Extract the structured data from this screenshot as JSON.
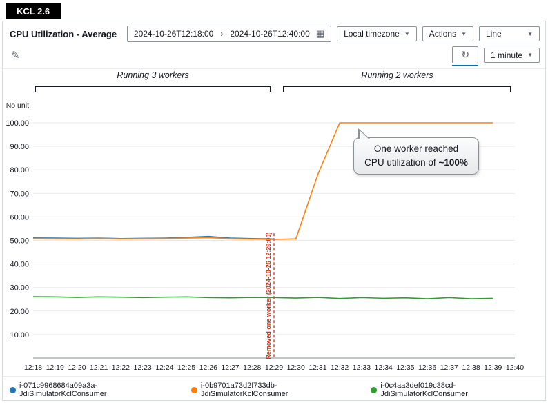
{
  "badge": {
    "label": "KCL 2.6"
  },
  "header": {
    "title": "CPU Utilization - Average",
    "date_start": "2024-10-26T12:18:00",
    "date_end": "2024-10-26T12:40:00",
    "timezone_label": "Local timezone",
    "actions_label": "Actions",
    "chart_type_label": "Line"
  },
  "toolbar": {
    "interval_label": "1 minute"
  },
  "icons": {
    "chevron_right": "›",
    "calendar": "▦",
    "dropdown": "▼",
    "edit": "✎",
    "refresh": "↻"
  },
  "annotations": {
    "left_bracket": "Running 3 workers",
    "right_bracket": "Running 2 workers",
    "callout_line1": "One worker reached",
    "callout_line2": "CPU utilization of ",
    "callout_bold": "~100%"
  },
  "chart_data": {
    "type": "line",
    "title": "CPU Utilization - Average",
    "ylabel": "No unit",
    "xlabel": "",
    "ylim": [
      0,
      103
    ],
    "grid": "horizontal",
    "legend_position": "bottom",
    "yticks": [
      10,
      20,
      30,
      40,
      50,
      60,
      70,
      80,
      90,
      100
    ],
    "x": [
      "12:18",
      "12:19",
      "12:20",
      "12:21",
      "12:22",
      "12:23",
      "12:24",
      "12:25",
      "12:26",
      "12:27",
      "12:28",
      "12:29",
      "12:30",
      "12:31",
      "12:32",
      "12:33",
      "12:34",
      "12:35",
      "12:36",
      "12:37",
      "12:38",
      "12:39",
      "12:40"
    ],
    "series": [
      {
        "name": "i-071c9968684a09a3a-JdiSimulatorKclConsumer",
        "color": "#1f77b4",
        "values": [
          51.1,
          51.0,
          50.9,
          51.0,
          50.8,
          50.9,
          51.0,
          51.3,
          51.7,
          51.0,
          50.8,
          50.6,
          null,
          null,
          null,
          null,
          null,
          null,
          null,
          null,
          null,
          null,
          null
        ]
      },
      {
        "name": "i-0b9701a73d2f733db-JdiSimulatorKclConsumer",
        "color": "#ff7f0e",
        "values": [
          50.9,
          50.8,
          50.7,
          50.9,
          50.7,
          50.8,
          50.9,
          51.0,
          51.2,
          50.8,
          50.6,
          50.4,
          50.7,
          78.0,
          100.0,
          100.0,
          100.0,
          100.0,
          100.0,
          100.0,
          100.0,
          100.0,
          null
        ]
      },
      {
        "name": "i-0c4aa3def019c38cd-JdiSimulatorKclConsumer",
        "color": "#2ca02c",
        "values": [
          26.1,
          26.0,
          25.8,
          26.0,
          25.9,
          25.7,
          25.9,
          26.0,
          25.7,
          25.6,
          25.8,
          25.7,
          25.5,
          25.8,
          25.3,
          25.7,
          25.4,
          25.6,
          25.2,
          25.7,
          25.2,
          25.4,
          null
        ]
      }
    ],
    "vline": {
      "x": "12:29",
      "label": "Removed one worker (2024-10-26 12:29:00)",
      "color": "#d13212"
    }
  }
}
